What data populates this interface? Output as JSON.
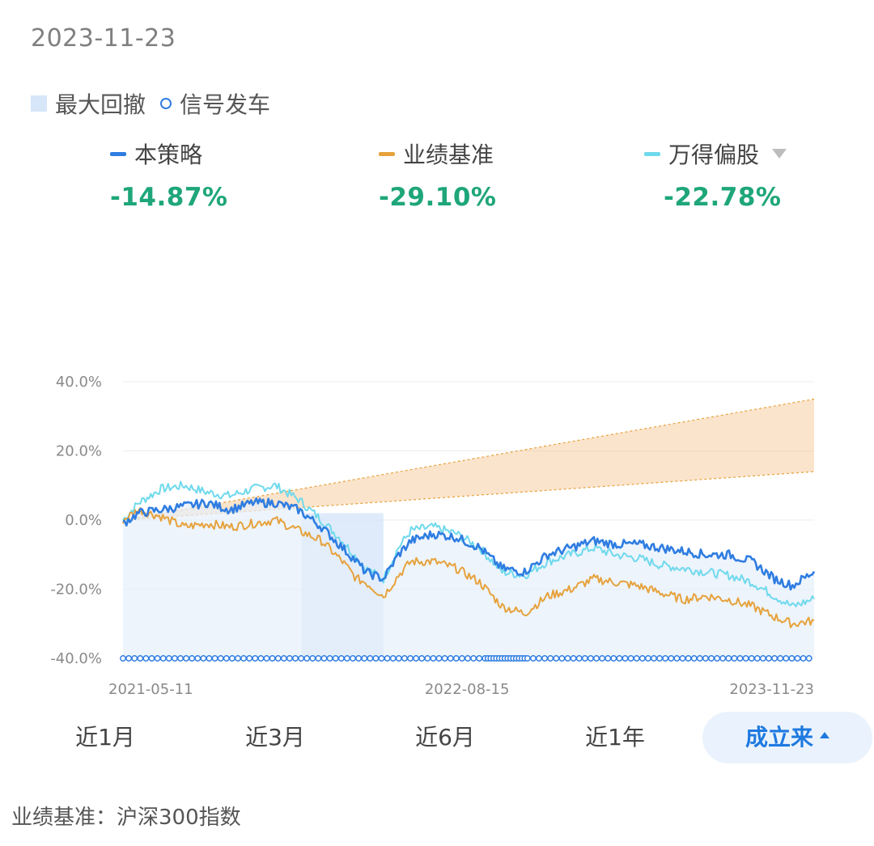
{
  "header": {
    "date": "2023-11-23"
  },
  "legend": [
    {
      "label": "最大回撤",
      "icon": "square-swatch",
      "color": "#d7e6f9"
    },
    {
      "label": "信号发车",
      "icon": "circle-marker",
      "color": "#2f7de1"
    }
  ],
  "series_summary": [
    {
      "name": "本策略",
      "value": "-14.87%",
      "color": "#2f7de1"
    },
    {
      "name": "业绩基准",
      "value": "-29.10%",
      "color": "#e6a23c"
    },
    {
      "name": "万得偏股",
      "value": "-22.78%",
      "color": "#6fd9ec",
      "dropdown_icon": "triangle-down-icon"
    }
  ],
  "tabs": [
    {
      "label": "近1月",
      "active": false
    },
    {
      "label": "近3月",
      "active": false
    },
    {
      "label": "近6月",
      "active": false
    },
    {
      "label": "近1年",
      "active": false
    },
    {
      "label": "成立来",
      "active": true,
      "icon": "triangle-up-icon"
    }
  ],
  "footer": {
    "label": "业绩基准：沪深300指数"
  },
  "chart_data": {
    "type": "line",
    "x_range": [
      "2021-05-11",
      "2023-11-23"
    ],
    "x_ticks": [
      "2021-05-11",
      "2022-08-15",
      "2023-11-23"
    ],
    "y_ticks": [
      "40.0%",
      "20.0%",
      "0.0%",
      "-20.0%",
      "-40.0%"
    ],
    "ylim": [
      -40,
      40
    ],
    "grid": true,
    "series": [
      {
        "name": "本策略",
        "color": "#2f7de1",
        "points": [
          [
            "2021-05-11",
            -1
          ],
          [
            "2021-06-01",
            2
          ],
          [
            "2021-07-01",
            3
          ],
          [
            "2021-08-01",
            4
          ],
          [
            "2021-09-01",
            5
          ],
          [
            "2021-10-01",
            3
          ],
          [
            "2021-11-01",
            5
          ],
          [
            "2021-12-01",
            5
          ],
          [
            "2022-01-01",
            3
          ],
          [
            "2022-02-01",
            -2
          ],
          [
            "2022-03-01",
            -8
          ],
          [
            "2022-03-20",
            -12
          ],
          [
            "2022-04-01",
            -15
          ],
          [
            "2022-04-25",
            -17
          ],
          [
            "2022-05-15",
            -10
          ],
          [
            "2022-06-01",
            -6
          ],
          [
            "2022-07-01",
            -4
          ],
          [
            "2022-08-01",
            -5
          ],
          [
            "2022-09-01",
            -8
          ],
          [
            "2022-10-01",
            -14
          ],
          [
            "2022-10-31",
            -15
          ],
          [
            "2022-12-01",
            -10
          ],
          [
            "2023-01-01",
            -8
          ],
          [
            "2023-02-01",
            -6
          ],
          [
            "2023-03-01",
            -7
          ],
          [
            "2023-04-01",
            -7
          ],
          [
            "2023-05-01",
            -8
          ],
          [
            "2023-06-01",
            -9
          ],
          [
            "2023-07-01",
            -10
          ],
          [
            "2023-08-01",
            -10
          ],
          [
            "2023-09-01",
            -12
          ],
          [
            "2023-10-01",
            -17
          ],
          [
            "2023-10-25",
            -19
          ],
          [
            "2023-11-23",
            -14.87
          ]
        ]
      },
      {
        "name": "业绩基准",
        "color": "#e6a23c",
        "points": [
          [
            "2021-05-11",
            0
          ],
          [
            "2021-06-01",
            3
          ],
          [
            "2021-07-01",
            1
          ],
          [
            "2021-08-01",
            -2
          ],
          [
            "2021-09-01",
            -1
          ],
          [
            "2021-10-01",
            -2
          ],
          [
            "2021-11-01",
            -1
          ],
          [
            "2021-12-01",
            0
          ],
          [
            "2022-01-01",
            -3
          ],
          [
            "2022-02-01",
            -6
          ],
          [
            "2022-03-01",
            -12
          ],
          [
            "2022-03-20",
            -17
          ],
          [
            "2022-04-01",
            -18
          ],
          [
            "2022-04-25",
            -22
          ],
          [
            "2022-05-15",
            -16
          ],
          [
            "2022-06-01",
            -12
          ],
          [
            "2022-07-01",
            -12
          ],
          [
            "2022-08-01",
            -14
          ],
          [
            "2022-09-01",
            -18
          ],
          [
            "2022-10-01",
            -25
          ],
          [
            "2022-10-31",
            -27
          ],
          [
            "2022-12-01",
            -22
          ],
          [
            "2023-01-01",
            -20
          ],
          [
            "2023-02-01",
            -17
          ],
          [
            "2023-03-01",
            -18
          ],
          [
            "2023-04-01",
            -19
          ],
          [
            "2023-05-01",
            -21
          ],
          [
            "2023-06-01",
            -23
          ],
          [
            "2023-07-01",
            -22
          ],
          [
            "2023-08-01",
            -23
          ],
          [
            "2023-09-01",
            -25
          ],
          [
            "2023-10-01",
            -28
          ],
          [
            "2023-10-25",
            -30
          ],
          [
            "2023-11-23",
            -29.1
          ]
        ]
      },
      {
        "name": "万得偏股",
        "color": "#6fd9ec",
        "points": [
          [
            "2021-05-11",
            0
          ],
          [
            "2021-06-01",
            5
          ],
          [
            "2021-07-01",
            9
          ],
          [
            "2021-08-01",
            10
          ],
          [
            "2021-09-01",
            8
          ],
          [
            "2021-10-01",
            7
          ],
          [
            "2021-11-01",
            9
          ],
          [
            "2021-12-01",
            10
          ],
          [
            "2022-01-01",
            6
          ],
          [
            "2022-02-01",
            0
          ],
          [
            "2022-03-01",
            -6
          ],
          [
            "2022-03-20",
            -11
          ],
          [
            "2022-04-01",
            -14
          ],
          [
            "2022-04-25",
            -17
          ],
          [
            "2022-05-15",
            -8
          ],
          [
            "2022-06-01",
            -3
          ],
          [
            "2022-07-01",
            -2
          ],
          [
            "2022-08-01",
            -4
          ],
          [
            "2022-09-01",
            -8
          ],
          [
            "2022-10-01",
            -15
          ],
          [
            "2022-10-31",
            -16
          ],
          [
            "2022-12-01",
            -12
          ],
          [
            "2023-01-01",
            -10
          ],
          [
            "2023-02-01",
            -8
          ],
          [
            "2023-03-01",
            -10
          ],
          [
            "2023-04-01",
            -11
          ],
          [
            "2023-05-01",
            -13
          ],
          [
            "2023-06-01",
            -14
          ],
          [
            "2023-07-01",
            -15
          ],
          [
            "2023-08-01",
            -16
          ],
          [
            "2023-09-01",
            -18
          ],
          [
            "2023-10-01",
            -22
          ],
          [
            "2023-10-25",
            -25
          ],
          [
            "2023-11-23",
            -22.78
          ]
        ]
      }
    ],
    "target_band": {
      "color": "#f6c48e",
      "start": [
        "2021-05-11",
        0
      ],
      "end_lower": [
        "2023-11-23",
        14
      ],
      "end_upper": [
        "2023-11-23",
        35
      ]
    },
    "max_drawdown": {
      "from": "2022-01-05",
      "to": "2022-04-25",
      "color": "#d7e6f9"
    },
    "signal_markers": {
      "y": -40,
      "color": "#2f7de1",
      "dense_from": "2022-09-01",
      "dense_to": "2022-11-01"
    }
  }
}
